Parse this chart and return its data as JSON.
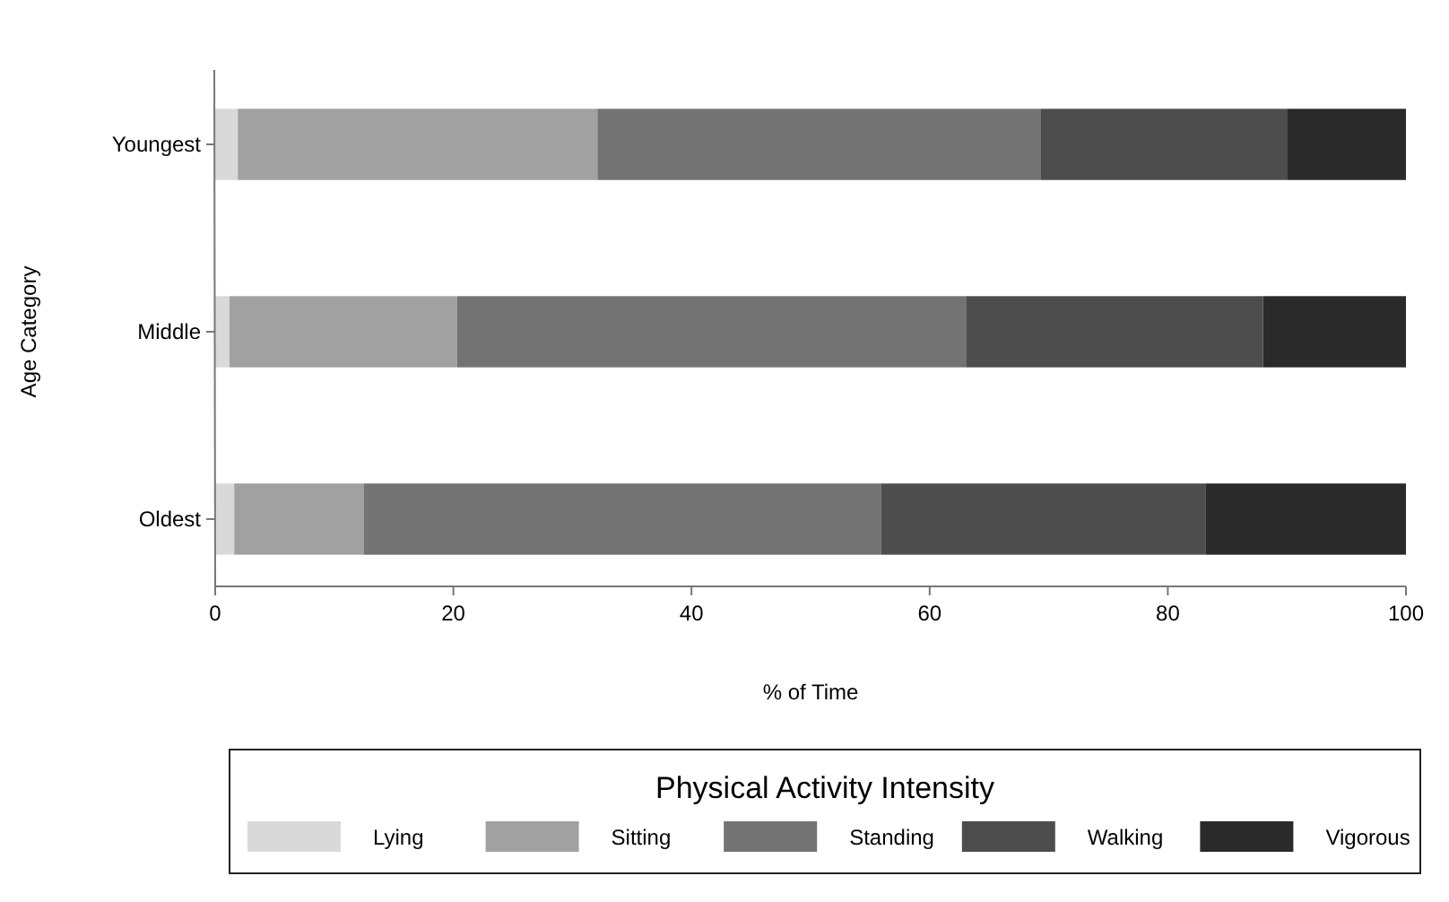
{
  "chart_data": {
    "type": "bar",
    "orientation": "horizontal",
    "stacked": true,
    "categories": [
      "Youngest",
      "Middle",
      "Oldest"
    ],
    "xlabel": "% of Time",
    "ylabel": "Age Category",
    "legend_title": "Physical Activity Intensity",
    "legend": "bottom",
    "grid": false,
    "xlim": [
      0,
      100
    ],
    "xticks": [
      0,
      20,
      40,
      60,
      80,
      100
    ],
    "series": [
      {
        "name": "Lying",
        "color": "#d9d9d9",
        "values": [
          1.9,
          1.2,
          1.6
        ]
      },
      {
        "name": "Sitting",
        "color": "#a1a1a1",
        "values": [
          30.2,
          19.1,
          10.9
        ]
      },
      {
        "name": "Standing",
        "color": "#737373",
        "values": [
          37.2,
          42.8,
          43.4
        ]
      },
      {
        "name": "Walking",
        "color": "#4d4d4d",
        "values": [
          20.7,
          24.9,
          27.3
        ]
      },
      {
        "name": "Vigorous",
        "color": "#2a2a2a",
        "values": [
          10.0,
          12.0,
          16.8
        ]
      }
    ]
  }
}
